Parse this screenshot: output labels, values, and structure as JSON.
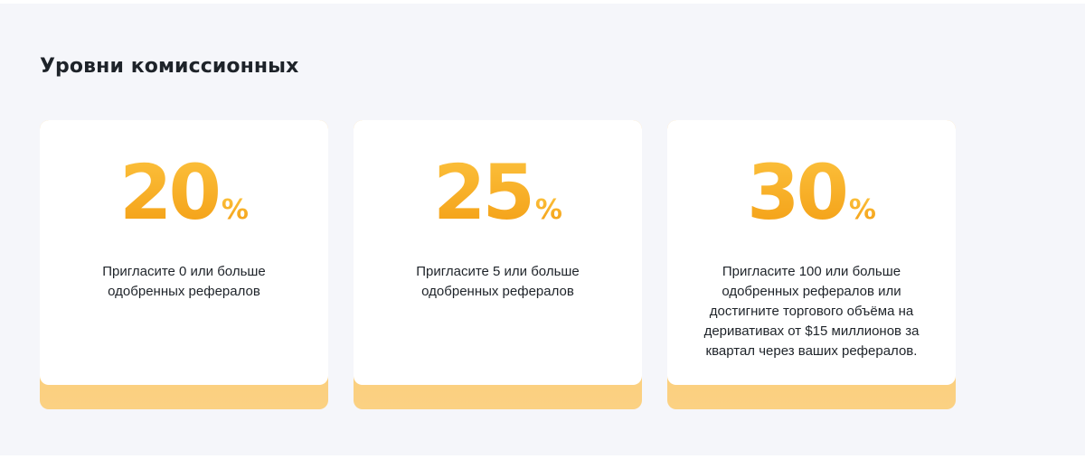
{
  "section": {
    "title": "Уровни комиссионных"
  },
  "tiers": [
    {
      "rate": "20",
      "unit": "%",
      "description": "Пригласите 0 или больше одобренных рефералов"
    },
    {
      "rate": "25",
      "unit": "%",
      "description": "Пригласите 5 или больше одобренных рефералов"
    },
    {
      "rate": "30",
      "unit": "%",
      "description": "Пригласите 100 или больше одобренных рефералов или достигните торгового объёма на деривативах от $15 миллионов за квартал через ваших рефералов."
    }
  ],
  "colors": {
    "page_background": "#f5f6fa",
    "card_background": "#ffffff",
    "accent_light": "#fcc33f",
    "accent_dark": "#f39d13",
    "card_base": "#f8c15c",
    "text_primary": "#1e2329"
  }
}
